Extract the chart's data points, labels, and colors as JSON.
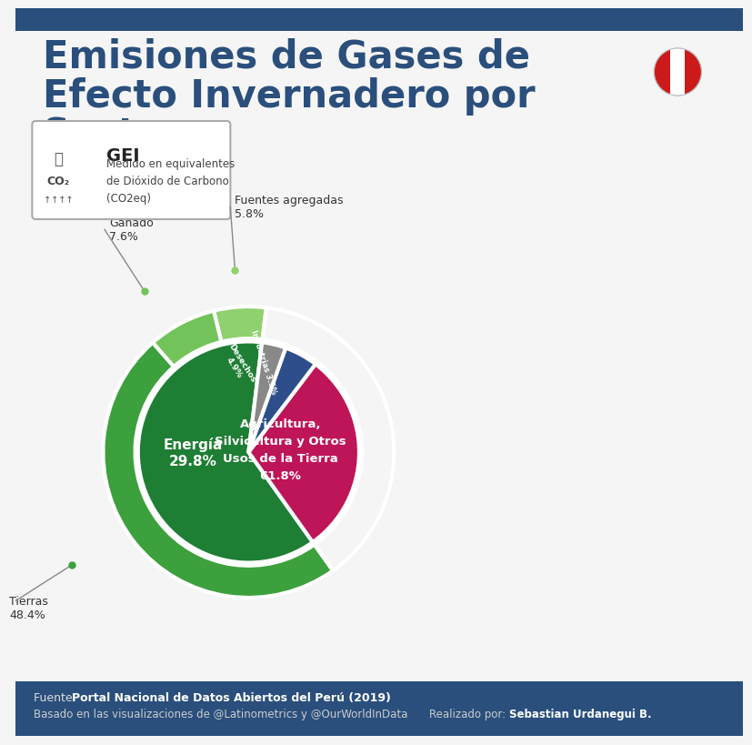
{
  "title_lines": [
    "Emisiones de Gases de",
    "Efecto Invernadero por",
    "Sector"
  ],
  "bg_color": "#f5f5f5",
  "title_color": "#2a4f7c",
  "header_stripe_color": "#2a4f7c",
  "footer_stripe_color": "#2a4f7c",
  "inner_values": [
    61.8,
    29.8,
    4.9,
    3.5
  ],
  "inner_colors": [
    "#1e7e34",
    "#be1558",
    "#2d4e8a",
    "#888888"
  ],
  "outer_values": [
    5.8,
    7.6,
    48.4,
    38.2
  ],
  "outer_colors": [
    "#8fd16e",
    "#72c45a",
    "#3ca03c",
    "#f5f5f5"
  ],
  "startangle": 83,
  "gei_label": "GEI",
  "gei_desc": "Medido en equivalentes\nde Dióxido de Carbono\n(CO2eq)",
  "label_fuentes": "Fuentes agregadas\n5.8%",
  "label_ganado": "Ganado\n7.6%",
  "label_tierras": "Tierras\n48.4%",
  "source1_prefix": "Fuente: ",
  "source1_bold": "Portal Nacional de Datos Abiertos del Perú (2019)",
  "source2": "Basado en las visualizaciones de @Latinometrics y @OurWorldInData",
  "author_prefix": "Realizado por: ",
  "author_bold": "Sebastian Urdanegui B.",
  "footer_text_color": "#333333"
}
